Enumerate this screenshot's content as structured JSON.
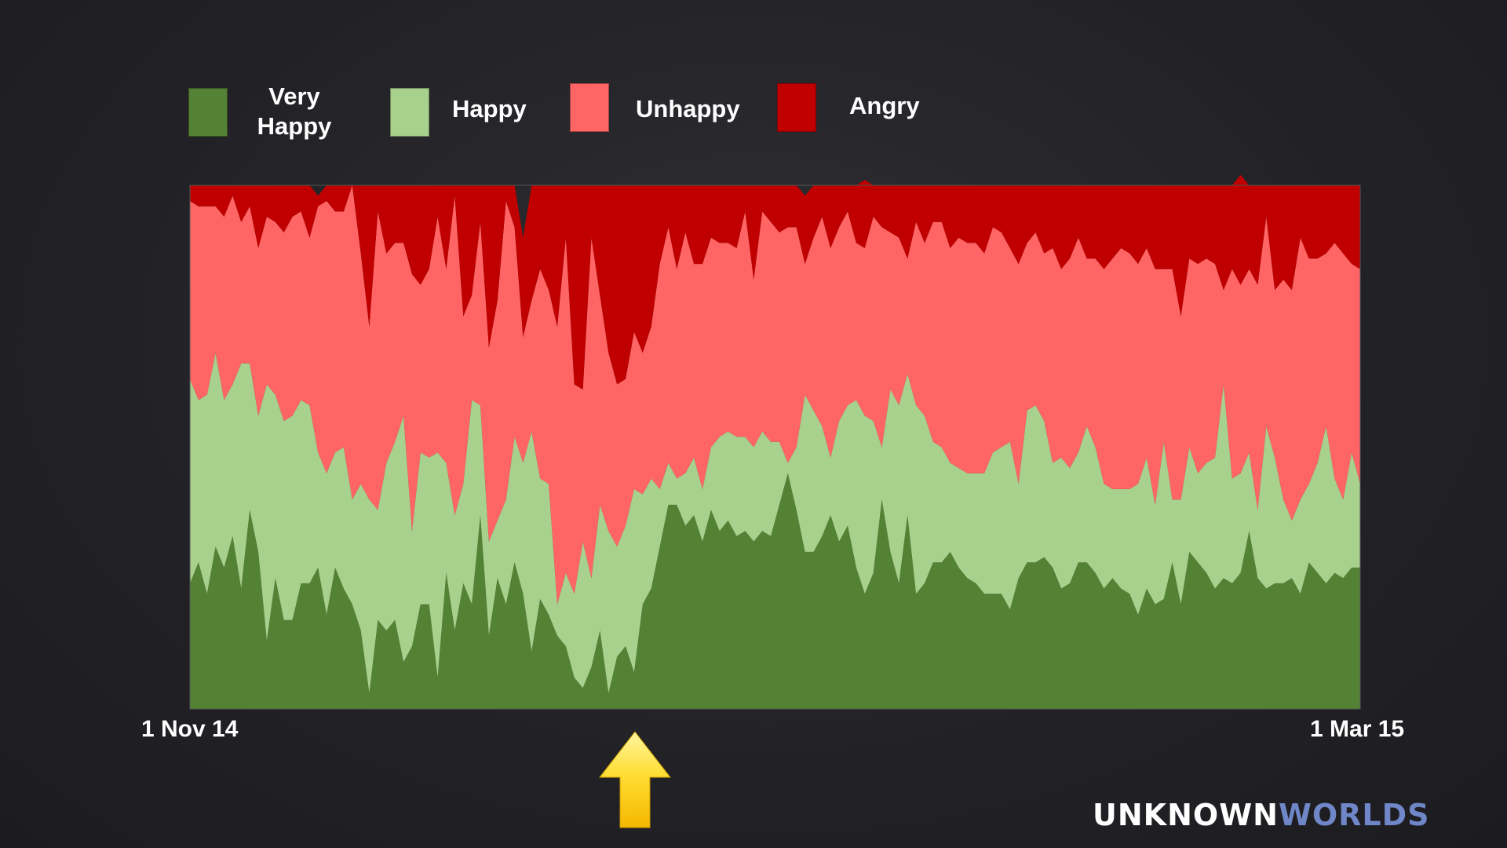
{
  "colors": {
    "very_happy": "#538234",
    "happy": "#a9d18e",
    "unhappy": "#ff6565",
    "angry": "#c00000",
    "logo_accent": "#6f87c8"
  },
  "legend": [
    {
      "key": "very_happy",
      "label_line1": "Very",
      "label_line2": "Happy"
    },
    {
      "key": "happy",
      "label_line1": "Happy",
      "label_line2": ""
    },
    {
      "key": "unhappy",
      "label_line1": "Unhappy",
      "label_line2": ""
    },
    {
      "key": "angry",
      "label_line1": "Angry",
      "label_line2": ""
    }
  ],
  "axis": {
    "start_label": "1 Nov 14",
    "end_label": "1 Mar 15"
  },
  "marker": {
    "icon": "up-arrow-icon",
    "date": "2014-12-19"
  },
  "logo": {
    "part1": "UNKNOWN",
    "part2": "WORLDS"
  },
  "chart_data": {
    "type": "area",
    "stacked": true,
    "normalized_percent": true,
    "title": "",
    "xlabel": "",
    "ylabel": "",
    "x_start": "2014-11-01",
    "x_end": "2015-03-01",
    "ylim": [
      0,
      100
    ],
    "grid": false,
    "legend_position": "top",
    "series": [
      {
        "name": "Very Happy",
        "key": "very_happy",
        "values": [
          24,
          28,
          22,
          31,
          27,
          33,
          23,
          38,
          30,
          13,
          25,
          17,
          17,
          24,
          24,
          27,
          18,
          27,
          23,
          20,
          15,
          3,
          17,
          15,
          17,
          9,
          12,
          20,
          20,
          6,
          26,
          15,
          24,
          20,
          37,
          14,
          25,
          20,
          28,
          22,
          11,
          21,
          18,
          14,
          12,
          6,
          4,
          8,
          15,
          3,
          10,
          12,
          7,
          20,
          23,
          31,
          39,
          39,
          35,
          37,
          32,
          38,
          34,
          36,
          33,
          34,
          32,
          34,
          33,
          39,
          45,
          38,
          30,
          30,
          33,
          37,
          32,
          35,
          27,
          22,
          26,
          40,
          30,
          24,
          37,
          22,
          24,
          28,
          28,
          30,
          27,
          25,
          24,
          22,
          22,
          22,
          19,
          25,
          28,
          28,
          29,
          27,
          23,
          24,
          28,
          28,
          26,
          23,
          25,
          23,
          22,
          18,
          23,
          20,
          21,
          28,
          20,
          30,
          28,
          26,
          23,
          25,
          24,
          26,
          34,
          25,
          23,
          24,
          24,
          25,
          22,
          28,
          26,
          24,
          26,
          25,
          27,
          27
        ]
      },
      {
        "name": "Happy",
        "key": "happy",
        "values": [
          39,
          31,
          38,
          37,
          32,
          29,
          43,
          28,
          26,
          49,
          35,
          38,
          39,
          35,
          34,
          22,
          27,
          22,
          27,
          20,
          28,
          37,
          21,
          32,
          34,
          47,
          22,
          29,
          28,
          43,
          21,
          22,
          19,
          39,
          21,
          18,
          11,
          20,
          24,
          25,
          42,
          23,
          25,
          6,
          14,
          16,
          28,
          17,
          24,
          31,
          21,
          23,
          35,
          21,
          21,
          11,
          8,
          5,
          10,
          11,
          10,
          12,
          18,
          17,
          19,
          18,
          18,
          19,
          18,
          12,
          2,
          12,
          30,
          27,
          21,
          11,
          23,
          23,
          32,
          34,
          29,
          10,
          31,
          34,
          27,
          36,
          32,
          23,
          22,
          17,
          19,
          20,
          21,
          23,
          27,
          28,
          32,
          18,
          29,
          30,
          26,
          20,
          25,
          22,
          21,
          26,
          24,
          20,
          17,
          19,
          20,
          25,
          25,
          19,
          30,
          12,
          20,
          20,
          17,
          21,
          25,
          37,
          20,
          19,
          15,
          13,
          31,
          24,
          16,
          11,
          18,
          15,
          21,
          30,
          18,
          15,
          22,
          16
        ]
      },
      {
        "name": "Unhappy",
        "key": "unhappy",
        "values": [
          34,
          37,
          36,
          28,
          35,
          36,
          27,
          30,
          32,
          32,
          33,
          36,
          38,
          36,
          32,
          47,
          52,
          46,
          45,
          60,
          44,
          33,
          57,
          40,
          38,
          33,
          49,
          32,
          36,
          45,
          37,
          61,
          32,
          20,
          35,
          37,
          42,
          57,
          40,
          24,
          25,
          40,
          37,
          53,
          64,
          40,
          29,
          65,
          40,
          34,
          31,
          28,
          30,
          27,
          29,
          43,
          45,
          40,
          46,
          37,
          43,
          40,
          37,
          36,
          36,
          43,
          32,
          42,
          42,
          40,
          45,
          42,
          25,
          33,
          40,
          40,
          37,
          37,
          30,
          32,
          39,
          42,
          30,
          32,
          22,
          35,
          33,
          42,
          43,
          41,
          44,
          44,
          44,
          42,
          43,
          41,
          37,
          42,
          32,
          33,
          32,
          41,
          36,
          40,
          41,
          32,
          36,
          41,
          44,
          46,
          45,
          42,
          40,
          45,
          33,
          44,
          35,
          36,
          40,
          39,
          37,
          18,
          40,
          36,
          35,
          43,
          40,
          32,
          42,
          44,
          50,
          43,
          39,
          33,
          45,
          47,
          36,
          41
        ]
      },
      {
        "name": "Angry",
        "key": "angry",
        "values": [
          3,
          4,
          4,
          4,
          6,
          2,
          7,
          4,
          12,
          6,
          7,
          9,
          6,
          5,
          10,
          2,
          3,
          5,
          5,
          0,
          13,
          27,
          5,
          13,
          11,
          11,
          17,
          19,
          16,
          6,
          16,
          2,
          25,
          21,
          7,
          31,
          22,
          3,
          8,
          19,
          22,
          16,
          20,
          27,
          10,
          38,
          39,
          10,
          21,
          32,
          38,
          37,
          28,
          32,
          27,
          15,
          8,
          16,
          9,
          15,
          15,
          10,
          11,
          11,
          12,
          5,
          18,
          5,
          7,
          9,
          8,
          8,
          13,
          10,
          6,
          12,
          8,
          5,
          11,
          13,
          6,
          8,
          9,
          10,
          14,
          7,
          11,
          7,
          7,
          12,
          10,
          11,
          11,
          13,
          8,
          9,
          12,
          15,
          11,
          9,
          13,
          12,
          16,
          14,
          10,
          14,
          14,
          16,
          14,
          12,
          13,
          15,
          12,
          16,
          16,
          16,
          25,
          14,
          15,
          14,
          15,
          20,
          16,
          21,
          16,
          19,
          6,
          20,
          18,
          20,
          10,
          14,
          14,
          13,
          11,
          13,
          15,
          16
        ]
      }
    ]
  }
}
